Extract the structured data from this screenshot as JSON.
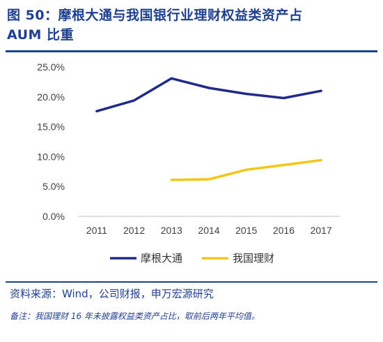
{
  "figure": {
    "title_line1": "图 50：摩根大通与我国银行业理财权益类资产占",
    "title_line2": "AUM 比重",
    "source": "资料来源：Wind，公司财报，申万宏源研究",
    "note": "备注：我国理财 16 年未披露权益类资产占比，取前后两年平均值。"
  },
  "colors": {
    "title": "#1f3f8f",
    "jpm": "#1f2a8a",
    "china": "#f5c518",
    "axis": "#bfbfbf"
  },
  "chart_data": {
    "type": "line",
    "title": "",
    "xlabel": "",
    "ylabel": "",
    "x": [
      "2011",
      "2012",
      "2013",
      "2014",
      "2015",
      "2016",
      "2017"
    ],
    "ylim": [
      0,
      25
    ],
    "yticks": [
      "0.0%",
      "5.0%",
      "10.0%",
      "15.0%",
      "20.0%",
      "25.0%"
    ],
    "grid": false,
    "legend": "bottom",
    "series": [
      {
        "name": "摩根大通",
        "values": [
          17.6,
          19.4,
          23.1,
          21.5,
          20.5,
          19.8,
          21.0
        ]
      },
      {
        "name": "我国理财",
        "values": [
          null,
          null,
          6.1,
          6.2,
          7.8,
          8.6,
          9.4
        ]
      }
    ]
  }
}
